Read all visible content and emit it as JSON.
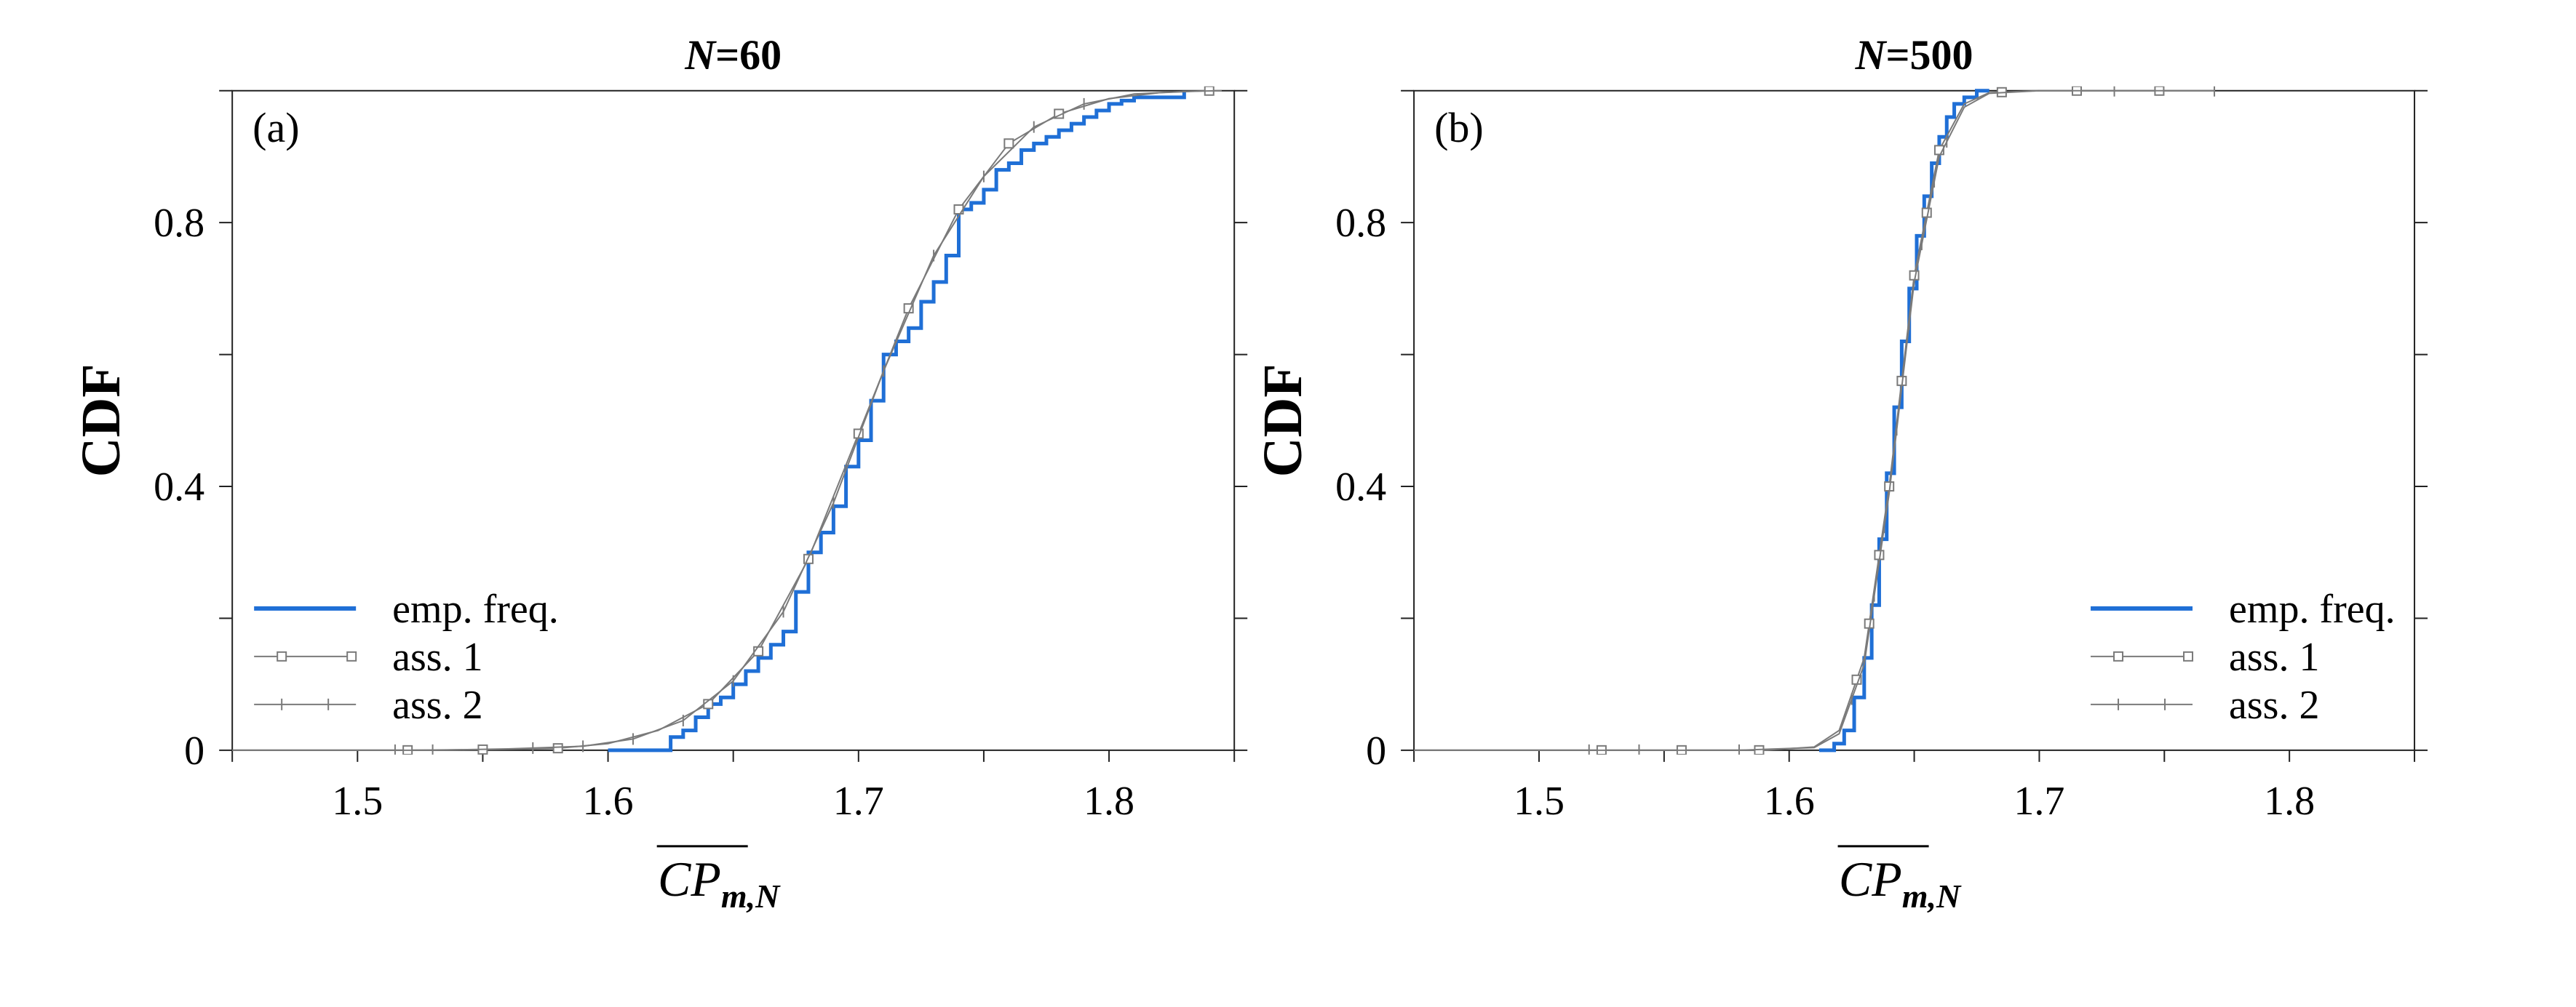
{
  "chart_data": [
    {
      "type": "line",
      "panel_label": "(a)",
      "title_var": "N",
      "title_rest": "=60",
      "ylabel": "CDF",
      "xlabel_main": "CP",
      "xlabel_sub": "m,N",
      "xlim": [
        1.45,
        1.85
      ],
      "ylim": [
        0,
        1
      ],
      "xticks": [
        1.5,
        1.6,
        1.7,
        1.8
      ],
      "xtick_labels": [
        "1.5",
        "1.6",
        "1.7",
        "1.8"
      ],
      "yticks": [
        0,
        0.4,
        0.8
      ],
      "ytick_labels": [
        "0",
        "0.4",
        "0.8"
      ],
      "legend": {
        "placement": "lower-left",
        "entries": [
          "emp. freq.",
          "ass. 1",
          "ass. 2"
        ]
      },
      "series": [
        {
          "name": "emp. freq.",
          "style": "step",
          "color": "#1f6fd6",
          "x": [
            1.6,
            1.62,
            1.625,
            1.63,
            1.635,
            1.64,
            1.645,
            1.65,
            1.655,
            1.66,
            1.665,
            1.67,
            1.675,
            1.68,
            1.685,
            1.69,
            1.695,
            1.7,
            1.705,
            1.71,
            1.715,
            1.72,
            1.725,
            1.73,
            1.735,
            1.74,
            1.745,
            1.75,
            1.755,
            1.76,
            1.765,
            1.77,
            1.775,
            1.78,
            1.785,
            1.79,
            1.795,
            1.8,
            1.805,
            1.81,
            1.815,
            1.82,
            1.83
          ],
          "y": [
            0.0,
            0.0,
            0.02,
            0.03,
            0.05,
            0.07,
            0.08,
            0.1,
            0.12,
            0.14,
            0.16,
            0.18,
            0.24,
            0.3,
            0.33,
            0.37,
            0.43,
            0.47,
            0.53,
            0.6,
            0.62,
            0.64,
            0.68,
            0.71,
            0.75,
            0.82,
            0.83,
            0.85,
            0.88,
            0.89,
            0.91,
            0.92,
            0.93,
            0.94,
            0.95,
            0.96,
            0.97,
            0.98,
            0.985,
            0.99,
            0.99,
            0.99,
            1.0
          ]
        },
        {
          "name": "ass. 1",
          "style": "line-square",
          "color": "#7a7a7a",
          "x": [
            1.45,
            1.5,
            1.52,
            1.55,
            1.58,
            1.6,
            1.62,
            1.64,
            1.66,
            1.68,
            1.7,
            1.72,
            1.74,
            1.76,
            1.78,
            1.8,
            1.82,
            1.84
          ],
          "y": [
            0.0,
            0.0,
            0.0,
            0.001,
            0.003,
            0.01,
            0.03,
            0.07,
            0.15,
            0.29,
            0.48,
            0.67,
            0.82,
            0.92,
            0.965,
            0.988,
            0.997,
            1.0
          ],
          "markers_x": [
            1.52,
            1.55,
            1.58,
            1.64,
            1.66,
            1.68,
            1.7,
            1.72,
            1.74,
            1.76,
            1.78,
            1.84
          ]
        },
        {
          "name": "ass. 2",
          "style": "line-plus",
          "color": "#7a7a7a",
          "x": [
            1.45,
            1.5,
            1.53,
            1.56,
            1.59,
            1.61,
            1.63,
            1.65,
            1.67,
            1.69,
            1.71,
            1.73,
            1.75,
            1.77,
            1.79,
            1.81,
            1.83,
            1.845
          ],
          "y": [
            0.0,
            0.0,
            0.0,
            0.002,
            0.006,
            0.017,
            0.045,
            0.105,
            0.21,
            0.375,
            0.575,
            0.75,
            0.87,
            0.945,
            0.98,
            0.995,
            0.999,
            1.0
          ],
          "markers_x": [
            1.515,
            1.53,
            1.57,
            1.59,
            1.61,
            1.63,
            1.65,
            1.67,
            1.69,
            1.71,
            1.73,
            1.75,
            1.77,
            1.79
          ]
        }
      ]
    },
    {
      "type": "line",
      "panel_label": "(b)",
      "title_var": "N",
      "title_rest": "=500",
      "ylabel": "CDF",
      "xlabel_main": "CP",
      "xlabel_sub": "m,N",
      "xlim": [
        1.45,
        1.85
      ],
      "ylim": [
        0,
        1
      ],
      "xticks": [
        1.5,
        1.6,
        1.7,
        1.8
      ],
      "xtick_labels": [
        "1.5",
        "1.6",
        "1.7",
        "1.8"
      ],
      "yticks": [
        0,
        0.4,
        0.8
      ],
      "ytick_labels": [
        "0",
        "0.4",
        "0.8"
      ],
      "legend": {
        "placement": "lower-right",
        "entries": [
          "emp. freq.",
          "ass. 1",
          "ass. 2"
        ]
      },
      "series": [
        {
          "name": "emp. freq.",
          "style": "step",
          "color": "#1f6fd6",
          "x": [
            1.612,
            1.618,
            1.622,
            1.626,
            1.63,
            1.633,
            1.636,
            1.639,
            1.642,
            1.645,
            1.648,
            1.651,
            1.654,
            1.657,
            1.66,
            1.663,
            1.666,
            1.67,
            1.675,
            1.68
          ],
          "y": [
            0.0,
            0.01,
            0.03,
            0.08,
            0.14,
            0.22,
            0.32,
            0.42,
            0.52,
            0.62,
            0.7,
            0.78,
            0.84,
            0.89,
            0.93,
            0.96,
            0.98,
            0.99,
            1.0,
            1.0
          ]
        },
        {
          "name": "ass. 1",
          "style": "line-square",
          "color": "#7a7a7a",
          "x": [
            1.45,
            1.52,
            1.56,
            1.59,
            1.61,
            1.62,
            1.63,
            1.64,
            1.65,
            1.66,
            1.67,
            1.68,
            1.7,
            1.75
          ],
          "y": [
            0.0,
            0.0,
            0.0,
            0.0,
            0.005,
            0.03,
            0.14,
            0.4,
            0.72,
            0.91,
            0.98,
            0.997,
            1.0,
            1.0
          ],
          "markers_x": [
            1.525,
            1.557,
            1.588,
            1.627,
            1.632,
            1.636,
            1.64,
            1.645,
            1.65,
            1.655,
            1.66,
            1.685,
            1.715,
            1.748
          ]
        },
        {
          "name": "ass. 2",
          "style": "line-plus",
          "color": "#7a7a7a",
          "x": [
            1.45,
            1.52,
            1.55,
            1.58,
            1.61,
            1.62,
            1.63,
            1.64,
            1.65,
            1.66,
            1.67,
            1.68,
            1.7,
            1.77
          ],
          "y": [
            0.0,
            0.0,
            0.0,
            0.0,
            0.004,
            0.025,
            0.13,
            0.39,
            0.71,
            0.9,
            0.975,
            0.996,
            1.0,
            1.0
          ],
          "markers_x": [
            1.52,
            1.54,
            1.58,
            1.625,
            1.634,
            1.638,
            1.643,
            1.648,
            1.653,
            1.658,
            1.663,
            1.73,
            1.77
          ]
        }
      ]
    }
  ]
}
